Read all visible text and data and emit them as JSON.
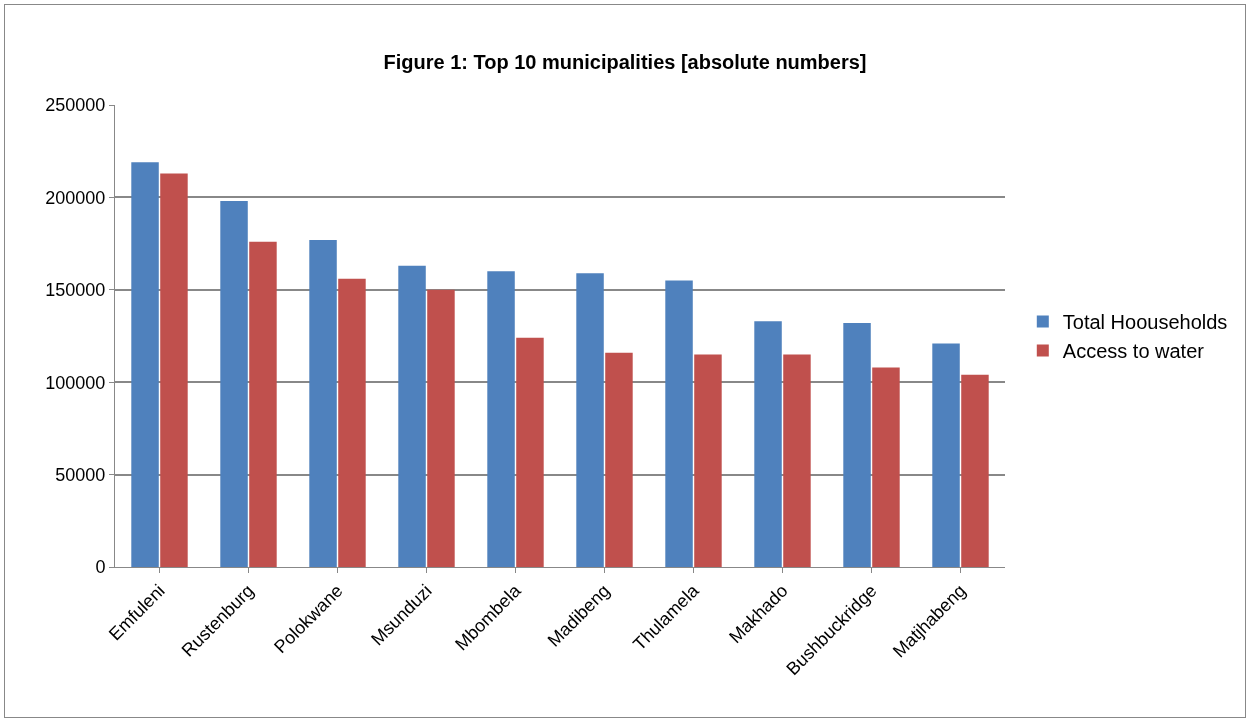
{
  "chart_data": {
    "type": "bar",
    "title": "Figure 1: Top 10 municipalities [absolute numbers]",
    "categories": [
      "Emfuleni",
      "Rustenburg",
      "Polokwane",
      "Msunduzi",
      "Mbombela",
      "Madibeng",
      "Thulamela",
      "Makhado",
      "Bushbuckridge",
      "Matjhabeng"
    ],
    "series": [
      {
        "name": "Total Hoouseholds",
        "color": "#4f81bd",
        "values": [
          219000,
          198000,
          177000,
          163000,
          160000,
          159000,
          155000,
          133000,
          132000,
          121000
        ]
      },
      {
        "name": "Access to water",
        "color": "#c0504d",
        "values": [
          213000,
          176000,
          156000,
          150000,
          124000,
          116000,
          115000,
          115000,
          108000,
          104000
        ]
      }
    ],
    "ylim": [
      0,
      250000
    ],
    "yticks": [
      0,
      50000,
      100000,
      150000,
      200000,
      250000
    ],
    "grid": "y",
    "legend": "right"
  }
}
